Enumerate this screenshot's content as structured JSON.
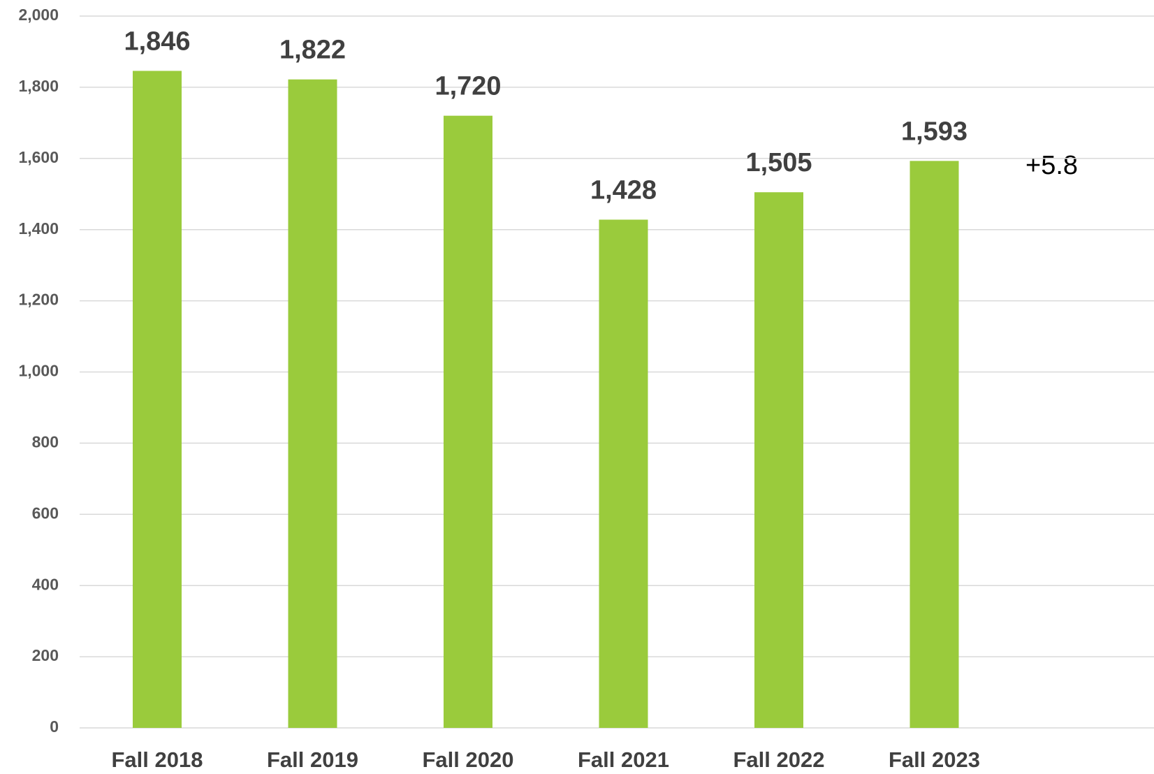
{
  "chart_data": {
    "type": "bar",
    "categories": [
      "Fall 2018",
      "Fall 2019",
      "Fall 2020",
      "Fall 2021",
      "Fall 2022",
      "Fall 2023"
    ],
    "values": [
      1846,
      1822,
      1720,
      1428,
      1505,
      1593
    ],
    "value_labels": [
      "1,846",
      "1,822",
      "1,720",
      "1,428",
      "1,505",
      "1,593"
    ],
    "color": "#9acb3c",
    "ylim": [
      0,
      2000
    ],
    "yticks": [
      0,
      200,
      400,
      600,
      800,
      {
        "value": 1000,
        "label": "1,000"
      },
      {
        "value": 1200,
        "label": "1,200"
      },
      {
        "value": 1400,
        "label": "1,400"
      },
      {
        "value": 1600,
        "label": "1,600"
      },
      {
        "value": 1800,
        "label": "1,800"
      },
      {
        "value": 2000,
        "label": "2,000"
      }
    ],
    "grid": true,
    "annotation": "+5.8"
  }
}
